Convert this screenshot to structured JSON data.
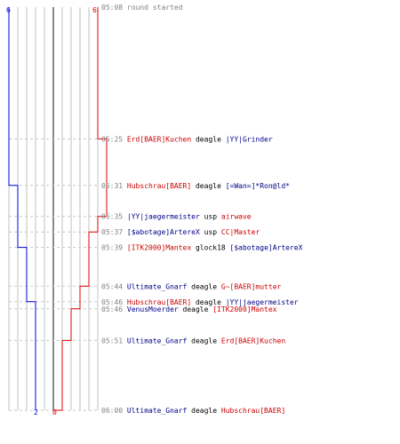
{
  "colors": {
    "team_red": "#e00000",
    "team_blue": "#0000e0",
    "grid": "#c0c0c0",
    "center_line": "#606060",
    "dash": "#c8c8c8",
    "time_text": "#808080",
    "red_text": "#cc0000",
    "blue_text": "#000088"
  },
  "counts": {
    "blue_start": "6",
    "red_start": "6",
    "blue_end": "2",
    "red_end": "0"
  },
  "events": [
    {
      "time": "05:08",
      "note": "round started"
    },
    {
      "time": "05:25",
      "killer": "Erd[BAER]Kuchen",
      "killer_team": "red",
      "weapon": "deagle",
      "victim": "|YY|Grinder",
      "victim_team": "blue",
      "blue_alive": 5,
      "red_alive": 6
    },
    {
      "time": "05:31",
      "killer": "Hubschrau[BAER]",
      "killer_team": "red",
      "weapon": "deagle",
      "victim": "[=Wan=]*Ron@ld*",
      "victim_team": "blue",
      "blue_alive": 4,
      "red_alive": 6
    },
    {
      "time": "05:35",
      "killer": "|YY|jaegermeister",
      "killer_team": "blue",
      "weapon": "usp",
      "victim": "airwave",
      "victim_team": "red",
      "blue_alive": 4,
      "red_alive": 5
    },
    {
      "time": "05:37",
      "killer": "[$abotage]ArtereX",
      "killer_team": "blue",
      "weapon": "usp",
      "victim": "CC|Master",
      "victim_team": "red",
      "blue_alive": 4,
      "red_alive": 4
    },
    {
      "time": "05:39",
      "killer": "[ITK2000]Mantex",
      "killer_team": "red",
      "weapon": "glock18",
      "victim": "[$abotage]ArtereX",
      "victim_team": "blue",
      "blue_alive": 3,
      "red_alive": 4
    },
    {
      "time": "05:44",
      "killer": "Ultimate_Gnarf",
      "killer_team": "blue",
      "weapon": "deagle",
      "victim": "G~[BAER]mutter",
      "victim_team": "red",
      "blue_alive": 3,
      "red_alive": 3
    },
    {
      "time": "05:46",
      "killer": "Hubschrau[BAER]",
      "killer_team": "red",
      "weapon": "deagle",
      "victim": "|YY|jaegermeister",
      "victim_team": "blue",
      "blue_alive": 2,
      "red_alive": 3
    },
    {
      "time": "05:46",
      "killer": "VenusMoerder",
      "killer_team": "blue",
      "weapon": "deagle",
      "victim": "[ITK2000]Mantex",
      "victim_team": "red",
      "blue_alive": 2,
      "red_alive": 2
    },
    {
      "time": "05:51",
      "killer": "Ultimate_Gnarf",
      "killer_team": "blue",
      "weapon": "deagle",
      "victim": "Erd[BAER]Kuchen",
      "victim_team": "red",
      "blue_alive": 2,
      "red_alive": 1
    },
    {
      "time": "06:00",
      "killer": "Ultimate_Gnarf",
      "killer_team": "blue",
      "weapon": "deagle",
      "victim": "Hubschrau[BAER]",
      "victim_team": "red",
      "blue_alive": 2,
      "red_alive": 0
    }
  ]
}
